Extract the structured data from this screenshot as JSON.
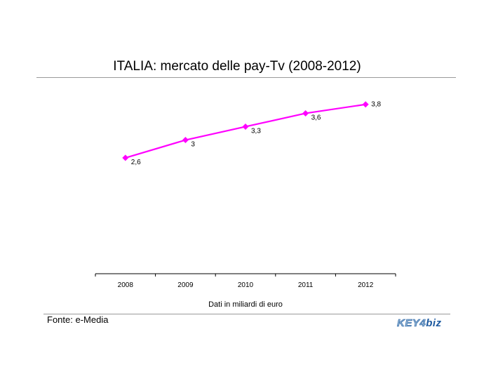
{
  "title": "ITALIA: mercato delle pay-Tv (2008-2012)",
  "note": "Dati in miliardi di euro",
  "source": "Fonte: e-Media",
  "logo": {
    "part1": "KEY4",
    "part2": "biz"
  },
  "colors": {
    "series": "#ff00ff",
    "rule": "#9a9a9a",
    "logo": "#1e5aa0"
  },
  "chart_data": {
    "type": "line",
    "title": "ITALIA: mercato delle pay-Tv (2008-2012)",
    "x": [
      "2008",
      "2009",
      "2010",
      "2011",
      "2012"
    ],
    "series": [
      {
        "values": [
          2.6,
          3.0,
          3.3,
          3.6,
          3.8
        ],
        "labels": [
          "2,6",
          "3",
          "3,3",
          "3,6",
          "3,8"
        ]
      }
    ],
    "xlabel": "Dati in miliardi di euro",
    "ylabel": "",
    "ylim": [
      0,
      4.3
    ],
    "grid": false,
    "legend": "none"
  }
}
